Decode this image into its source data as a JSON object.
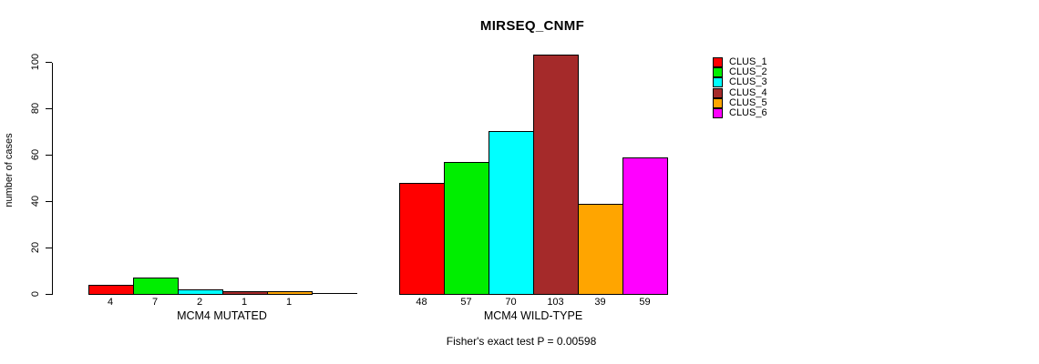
{
  "title": "MIRSEQ_CNMF",
  "footer_annotation": "Fisher's exact test P = 0.00598",
  "chart_data": {
    "type": "bar",
    "title": "MIRSEQ_CNMF",
    "xlabel": "",
    "ylabel": "number of cases",
    "ylim": [
      0,
      100
    ],
    "yticks": [
      0,
      20,
      40,
      60,
      80,
      100
    ],
    "grid": false,
    "legend_position": "right-outside",
    "annotation": "Fisher's exact test P = 0.00598",
    "categories": [
      "MCM4 MUTATED",
      "MCM4 WILD-TYPE"
    ],
    "series": [
      {
        "name": "CLUS_1",
        "color": "#ff0000",
        "values": [
          4,
          48
        ]
      },
      {
        "name": "CLUS_2",
        "color": "#00ee00",
        "values": [
          7,
          57
        ]
      },
      {
        "name": "CLUS_3",
        "color": "#00ffff",
        "values": [
          2,
          70
        ]
      },
      {
        "name": "CLUS_4",
        "color": "#a52a2a",
        "values": [
          1,
          103
        ]
      },
      {
        "name": "CLUS_5",
        "color": "#ffa500",
        "values": [
          1,
          39
        ]
      },
      {
        "name": "CLUS_6",
        "color": "#ff00ff",
        "values": [
          0,
          59
        ]
      }
    ],
    "bar_value_labels": [
      [
        "4",
        "7",
        "2",
        "1",
        "1",
        ""
      ],
      [
        "48",
        "57",
        "70",
        "103",
        "39",
        "59"
      ]
    ]
  }
}
